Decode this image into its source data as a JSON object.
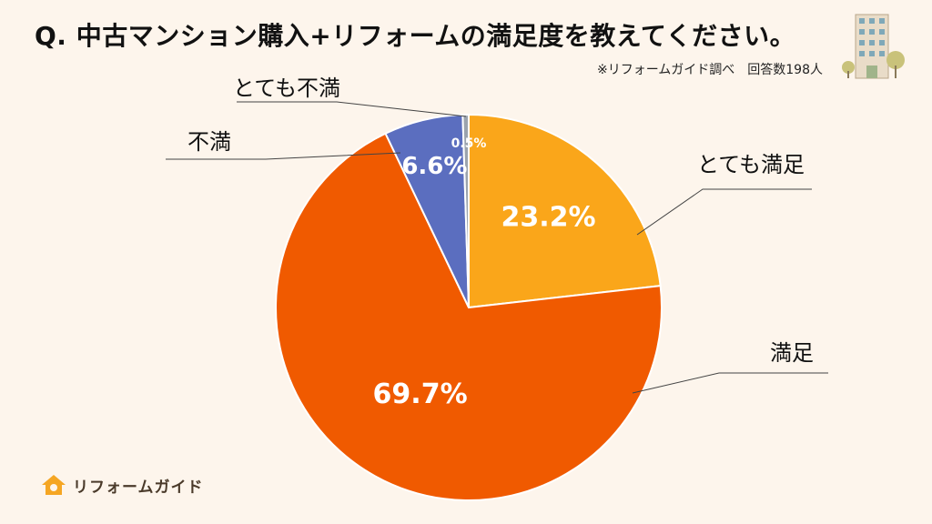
{
  "page": {
    "title": "Q. 中古マンション購入+リフォームの満足度を教えてください。",
    "source": "※リフォームガイド調べ　回答数198人",
    "brand": "リフォームガイド"
  },
  "chart_data": {
    "type": "pie",
    "title": "Q. 中古マンション購入+リフォームの満足度を教えてください。",
    "slices": [
      {
        "label": "とても満足",
        "value": 23.2,
        "value_label": "23.2%",
        "color": "#faa61a"
      },
      {
        "label": "満足",
        "value": 69.7,
        "value_label": "69.7%",
        "color": "#f05a00"
      },
      {
        "label": "不満",
        "value": 6.6,
        "value_label": "6.6%",
        "color": "#5b6ebf"
      },
      {
        "label": "とても不満",
        "value": 0.5,
        "value_label": "0.5%",
        "color": "#9ba3ad"
      }
    ],
    "start": "12 o'clock",
    "direction": "clockwise",
    "legend": "none"
  },
  "colors": {
    "background": "#fdf5ec",
    "brand_house": "#f5a623"
  }
}
